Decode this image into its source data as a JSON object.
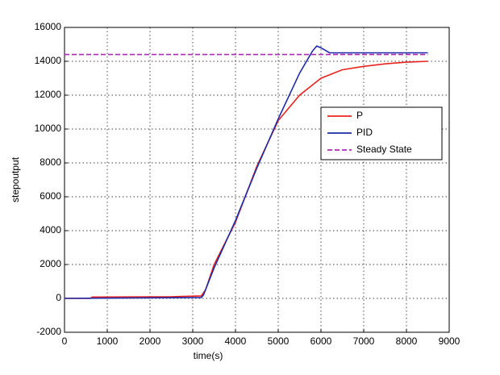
{
  "chart_data": {
    "type": "line",
    "xlabel": "time(s)",
    "ylabel": "stepoutput",
    "xlim": [
      0,
      9000
    ],
    "xticks": [
      0,
      1000,
      2000,
      3000,
      4000,
      5000,
      6000,
      7000,
      8000,
      9000
    ],
    "ylim": [
      -2000,
      16000
    ],
    "yticks": [
      -2000,
      0,
      2000,
      4000,
      6000,
      8000,
      10000,
      12000,
      14000,
      16000
    ],
    "grid": true,
    "legend": "east",
    "series": [
      {
        "name": "P",
        "color": "#e8231f",
        "dash": false,
        "x": [
          0,
          600,
          650,
          2500,
          3200,
          3300,
          3500,
          4000,
          4500,
          5000,
          5500,
          6000,
          6500,
          7000,
          7500,
          8000,
          8500
        ],
        "values": [
          0,
          0,
          80,
          100,
          150,
          500,
          2000,
          4500,
          7800,
          10500,
          12000,
          13000,
          13500,
          13700,
          13850,
          13950,
          14000
        ]
      },
      {
        "name": "PID",
        "color": "#1f2aa8",
        "dash": false,
        "x": [
          0,
          3200,
          3250,
          3500,
          4000,
          4500,
          5000,
          5500,
          5800,
          5900,
          6000,
          6200,
          6500,
          8500
        ],
        "values": [
          0,
          50,
          200,
          1800,
          4600,
          7700,
          10600,
          13300,
          14600,
          14900,
          14800,
          14500,
          14500,
          14500
        ]
      },
      {
        "name": "Steady State",
        "color": "#b02ab8",
        "dash": true,
        "x": [
          0,
          8500
        ],
        "values": [
          14400,
          14400
        ]
      }
    ]
  }
}
